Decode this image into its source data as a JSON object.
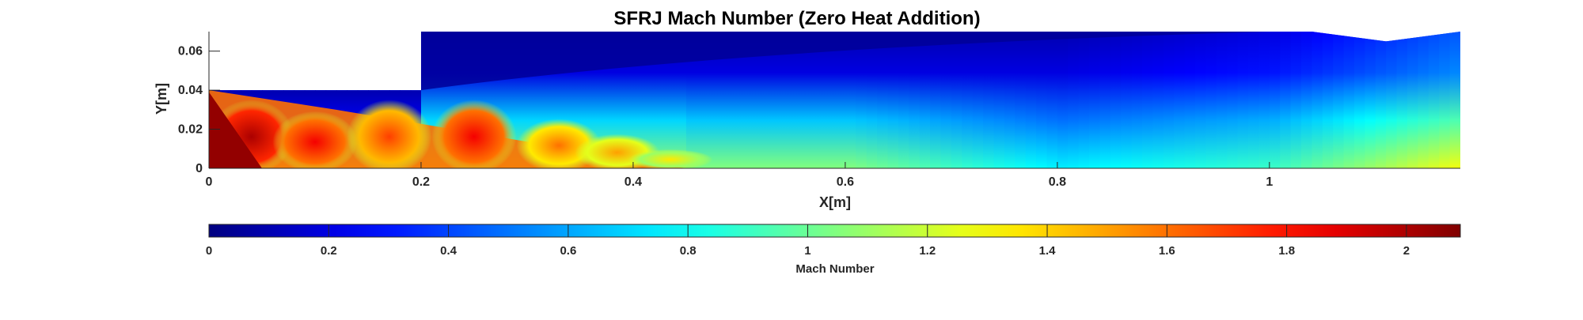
{
  "chart_data": {
    "type": "heatmap",
    "title": "SFRJ Mach Number (Zero Heat Addition)",
    "xlabel": "X[m]",
    "ylabel": "Y[m]",
    "xlim": [
      0,
      1.18
    ],
    "ylim": [
      0,
      0.07
    ],
    "x_ticks": [
      0,
      0.2,
      0.4,
      0.6,
      0.8,
      1
    ],
    "x_tick_labels": [
      "0",
      "0.2",
      "0.4",
      "0.6",
      "0.8",
      "1"
    ],
    "y_ticks": [
      0,
      0.02,
      0.04,
      0.06
    ],
    "y_tick_labels": [
      "0",
      "0.02",
      "0.04",
      "0.06"
    ],
    "colormap": "jet",
    "colorbar": {
      "label": "Mach Number",
      "limits": [
        0,
        2.09
      ],
      "ticks": [
        0,
        0.2,
        0.4,
        0.6,
        0.8,
        1,
        1.2,
        1.4,
        1.6,
        1.8,
        2
      ],
      "tick_labels": [
        "0",
        "0.2",
        "0.4",
        "0.6",
        "0.8",
        "1",
        "1.2",
        "1.4",
        "1.6",
        "1.8",
        "2"
      ],
      "placement": "bottom"
    },
    "domain_boundary": [
      [
        0,
        0.04
      ],
      [
        0.2,
        0.04
      ],
      [
        0.2,
        0.07
      ],
      [
        1.04,
        0.07
      ],
      [
        1.11,
        0.065
      ],
      [
        1.18,
        0.07
      ],
      [
        1.18,
        0
      ]
    ],
    "jet_core": {
      "x_range": [
        0,
        0.45
      ],
      "peak_mach": 2.05,
      "min_mach_near_step": 0.9
    },
    "shock_cells": [
      {
        "x": 0.04,
        "y": 0.018,
        "mach": 2.0
      },
      {
        "x": 0.1,
        "y": 0.015,
        "mach": 1.85
      },
      {
        "x": 0.17,
        "y": 0.018,
        "mach": 1.7
      },
      {
        "x": 0.25,
        "y": 0.018,
        "mach": 1.85
      },
      {
        "x": 0.33,
        "y": 0.013,
        "mach": 1.6
      },
      {
        "x": 0.385,
        "y": 0.009,
        "mach": 1.5
      },
      {
        "x": 0.435,
        "y": 0.005,
        "mach": 1.35
      }
    ],
    "downstream_field": [
      {
        "x": 0.6,
        "axis_mach": 1.05,
        "wall_mach": 0.1
      },
      {
        "x": 0.8,
        "axis_mach": 0.75,
        "wall_mach": 0.1
      },
      {
        "x": 1.0,
        "axis_mach": 0.9,
        "wall_mach": 0.2
      },
      {
        "x": 1.18,
        "axis_mach": 1.3,
        "wall_mach": 0.45
      }
    ],
    "grid": false
  }
}
